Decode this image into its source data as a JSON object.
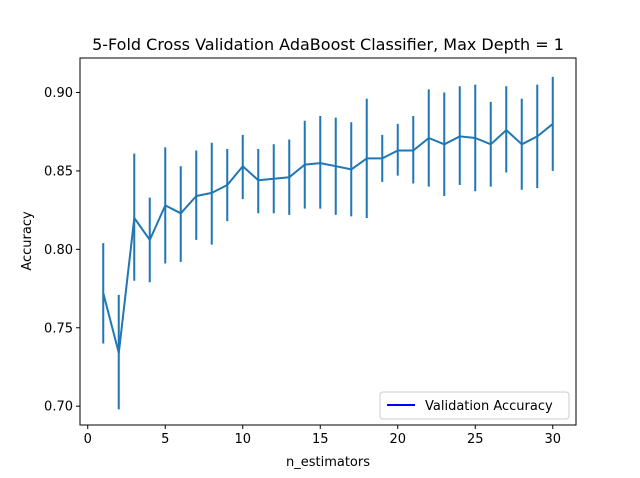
{
  "chart_data": {
    "type": "line",
    "title": "5-Fold Cross Validation AdaBoost Classifier, Max Depth = 1",
    "xlabel": "n_estimators",
    "ylabel": "Accuracy",
    "xlim": [
      -0.5,
      31.5
    ],
    "ylim": [
      0.688,
      0.922
    ],
    "xticks": [
      0,
      5,
      10,
      15,
      20,
      25,
      30
    ],
    "yticks": [
      0.7,
      0.75,
      0.8,
      0.85,
      0.9
    ],
    "xtick_labels": [
      "0",
      "5",
      "10",
      "15",
      "20",
      "25",
      "30"
    ],
    "ytick_labels": [
      "0.70",
      "0.75",
      "0.80",
      "0.85",
      "0.90"
    ],
    "legend": {
      "position": "lower-right",
      "label": "Validation Accuracy",
      "line_color": "#0000ff"
    },
    "series": [
      {
        "name": "Validation Accuracy",
        "color": "#1f77b4",
        "x": [
          1,
          2,
          3,
          4,
          5,
          6,
          7,
          8,
          9,
          10,
          11,
          12,
          13,
          14,
          15,
          16,
          17,
          18,
          19,
          20,
          21,
          22,
          23,
          24,
          25,
          26,
          27,
          28,
          29,
          30
        ],
        "y": [
          0.772,
          0.734,
          0.82,
          0.806,
          0.828,
          0.823,
          0.834,
          0.836,
          0.841,
          0.853,
          0.844,
          0.845,
          0.846,
          0.854,
          0.855,
          0.853,
          0.851,
          0.858,
          0.858,
          0.863,
          0.863,
          0.871,
          0.867,
          0.872,
          0.871,
          0.867,
          0.876,
          0.867,
          0.872,
          0.88
        ],
        "err_low": [
          0.74,
          0.698,
          0.78,
          0.779,
          0.791,
          0.792,
          0.806,
          0.803,
          0.818,
          0.832,
          0.823,
          0.823,
          0.822,
          0.826,
          0.826,
          0.822,
          0.821,
          0.82,
          0.843,
          0.847,
          0.842,
          0.84,
          0.834,
          0.841,
          0.837,
          0.84,
          0.849,
          0.838,
          0.839,
          0.85
        ],
        "err_high": [
          0.804,
          0.771,
          0.861,
          0.833,
          0.865,
          0.853,
          0.863,
          0.868,
          0.864,
          0.873,
          0.864,
          0.867,
          0.87,
          0.882,
          0.885,
          0.884,
          0.881,
          0.896,
          0.873,
          0.88,
          0.885,
          0.902,
          0.9,
          0.904,
          0.905,
          0.894,
          0.904,
          0.896,
          0.905,
          0.91
        ]
      }
    ]
  }
}
